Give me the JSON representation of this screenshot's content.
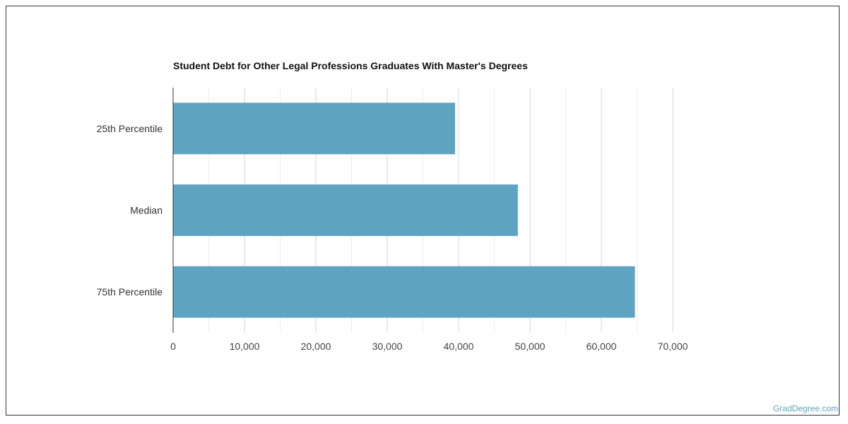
{
  "chart_data": {
    "type": "bar",
    "orientation": "horizontal",
    "title": "Student Debt for Other Legal Professions Graduates With Master's Degrees",
    "categories": [
      "25th Percentile",
      "Median",
      "75th Percentile"
    ],
    "values": [
      39500,
      48300,
      64700
    ],
    "xlim": [
      0,
      70000
    ],
    "xticks": [
      "0",
      "10,000",
      "20,000",
      "30,000",
      "40,000",
      "50,000",
      "60,000",
      "70,000"
    ],
    "grid": true,
    "bar_color": "#5ea3c0",
    "xlabel": "",
    "ylabel": ""
  },
  "credit": "GradDegree.com"
}
